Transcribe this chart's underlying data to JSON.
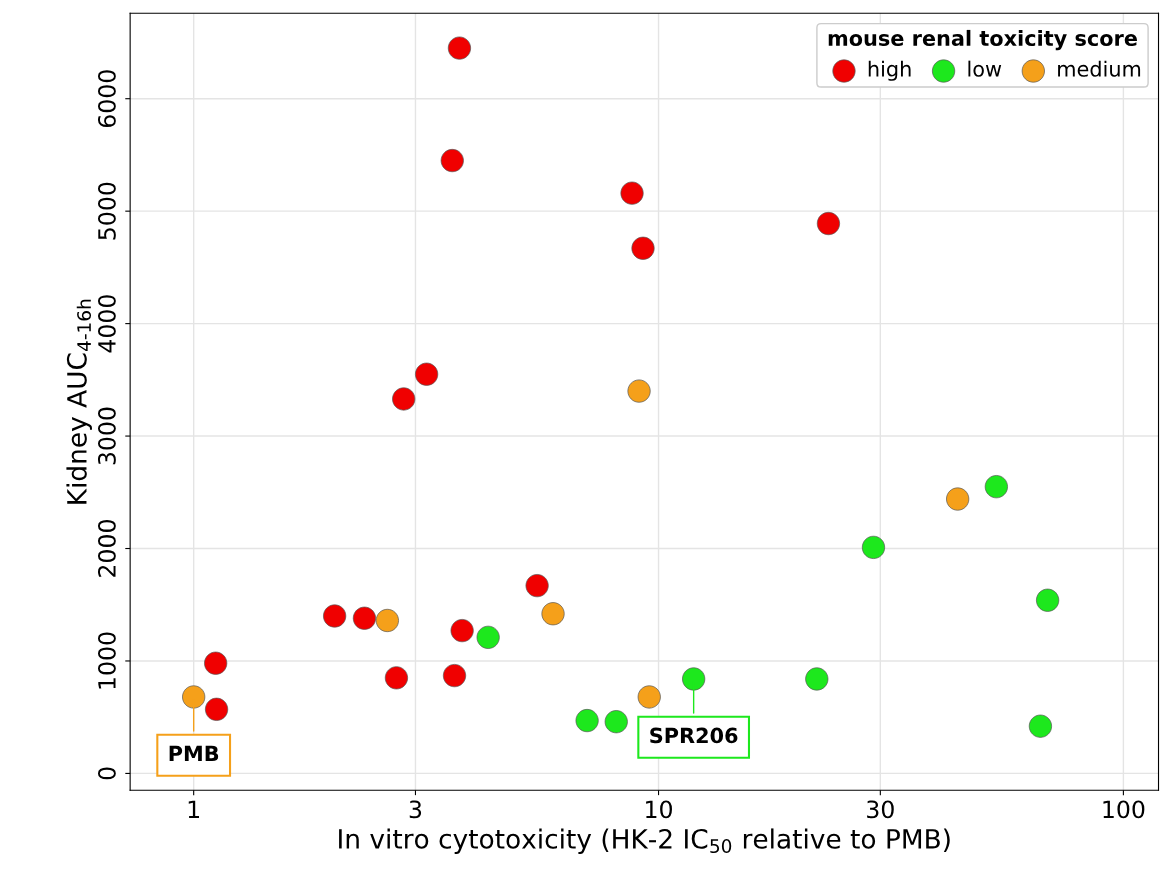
{
  "chart_data": {
    "type": "scatter",
    "xlabel": "In vitro cytotoxicity (HK-2 IC$_{50}$ relative to PMB)",
    "ylabel": "Kidney AUC$_{4-16h}$",
    "legend_title": "mouse renal toxicity score",
    "legend": "top right",
    "grid": true,
    "marker": "circle",
    "log": "x",
    "xlim": [
      0.73,
      119
    ],
    "xticks": [
      1,
      3,
      10,
      30,
      100
    ],
    "ylim": [
      -150,
      6760
    ],
    "yticks": [
      0,
      1000,
      2000,
      3000,
      4000,
      5000,
      6000
    ],
    "series": [
      {
        "name": "high",
        "color": "#f00000",
        "x": [
          3.73,
          3.6,
          8.77,
          9.26,
          23.2,
          3.17,
          2.83,
          5.48,
          2.01,
          2.33,
          3.78,
          1.115,
          2.73,
          3.64,
          1.12
        ],
        "values": [
          6450,
          5450,
          5160,
          4670,
          4890,
          3550,
          3330,
          1670,
          1400,
          1380,
          1270,
          980,
          850,
          870,
          570
        ]
      },
      {
        "name": "low",
        "color": "#1de81d",
        "x": [
          4.3,
          29.0,
          53.3,
          68.7,
          21.9,
          11.9,
          7.02,
          8.11,
          66.3
        ],
        "values": [
          1210,
          2010,
          2550,
          1540,
          840,
          840,
          470,
          460,
          420
        ]
      },
      {
        "name": "medium",
        "color": "#f5a01a",
        "x": [
          1.0,
          2.61,
          5.93,
          9.08,
          9.55,
          44.0
        ],
        "values": [
          680,
          1360,
          1420,
          3400,
          680,
          2440
        ]
      }
    ],
    "annotations": [
      {
        "text": "PMB",
        "x": 1.0,
        "y": 680
      },
      {
        "text": "SPR206",
        "x": 11.9,
        "y": 840
      }
    ]
  }
}
